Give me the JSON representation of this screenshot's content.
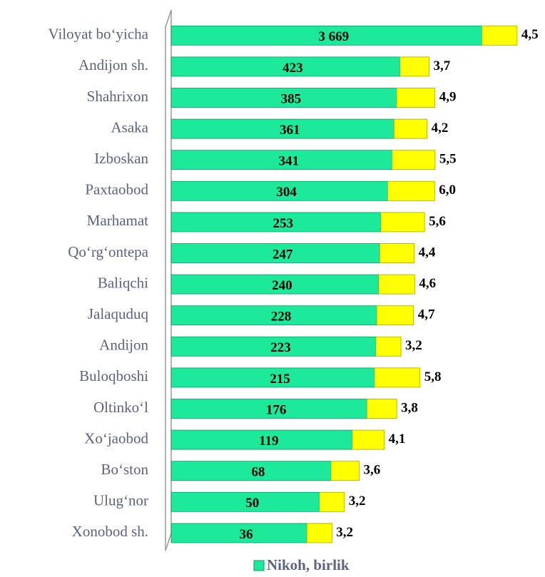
{
  "chart_data": {
    "type": "bar",
    "orientation": "horizontal",
    "xscale": "log",
    "xlim": [
      1,
      4000
    ],
    "x2lim": [
      0,
      40
    ],
    "categories": [
      "Viloyat bo‘yicha",
      "Andijon sh.",
      "Shahrixon",
      "Asaka",
      "Izboskan",
      "Paxtaobod",
      "Marhamat",
      "Qo‘rg‘ontepa",
      "Baliqchi",
      "Jalaquduq",
      "Andijon",
      "Buloqboshi",
      "Oltinko‘l",
      "Xo‘jaobod",
      "Bo‘ston",
      "Ulug‘nor",
      "Xonobod sh."
    ],
    "series": [
      {
        "name": "Nikoh, birlik",
        "color": "#1de99b",
        "values": [
          3669,
          423,
          385,
          361,
          341,
          304,
          253,
          247,
          240,
          228,
          223,
          215,
          176,
          119,
          68,
          50,
          36
        ],
        "value_labels": [
          "3 669",
          "423",
          "385",
          "361",
          "341",
          "304",
          "253",
          "247",
          "240",
          "228",
          "223",
          "215",
          "176",
          "119",
          "68",
          "50",
          "36"
        ]
      },
      {
        "color": "#ffff00",
        "axis": "x2",
        "values": [
          4.5,
          3.7,
          4.9,
          4.2,
          5.5,
          6.0,
          5.6,
          4.4,
          4.6,
          4.7,
          3.2,
          5.8,
          3.8,
          4.1,
          3.6,
          3.2,
          3.2
        ],
        "value_labels": [
          "4,5",
          "3,7",
          "4,9",
          "4,2",
          "5,5",
          "6,0",
          "5,6",
          "4,4",
          "4,6",
          "4,7",
          "3,2",
          "5,8",
          "3,8",
          "4,1",
          "3,6",
          "3,2",
          "3,2"
        ]
      }
    ],
    "legend": "bottom"
  }
}
